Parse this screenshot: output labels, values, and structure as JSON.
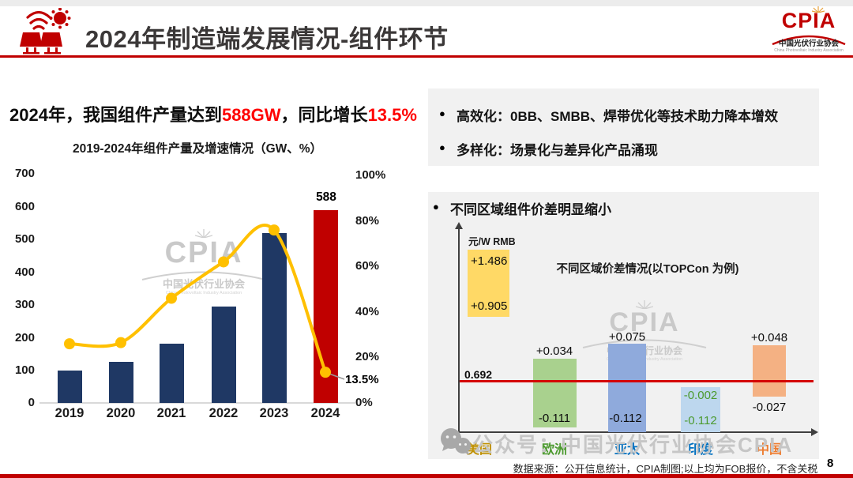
{
  "header": {
    "title": "2024年制造端发展情况-组件环节",
    "logo": {
      "acronym": "CPIA",
      "name_cn": "中国光伏行业协会",
      "name_en": "China Photovoltaic Industry Association"
    }
  },
  "headline": {
    "part1": "2024年，我国组件产量达到",
    "highlight1": "588GW",
    "part2": "，同比增长",
    "highlight2": "13.5%"
  },
  "bullets": [
    "高效化：0BB、SMBB、焊带优化等技术助力降本增效",
    "多样化：场景化与差异化产品涌现"
  ],
  "section_title": "不同区域组件价差明显缩小",
  "watermark": {
    "acronym": "CPIA",
    "name_cn": "中国光伏行业协会",
    "name_en": "China Photovoltaic Industry Association"
  },
  "bottom_watermark": "公众号：中国光伏行业协会CPIA",
  "footer": {
    "source": "数据来源：公开信息统计，CPIA制图;以上均为FOB报价，不含关税",
    "page": "8"
  },
  "chart_data": [
    {
      "type": "bar",
      "subtype": "bar-line-combo",
      "title": "2019-2024年组件产量及增速情况（GW、%）",
      "categories": [
        "2019",
        "2020",
        "2021",
        "2022",
        "2023",
        "2024"
      ],
      "series": [
        {
          "name": "组件产量(GW)",
          "type": "bar",
          "values": [
            98,
            125,
            182,
            295,
            518,
            588
          ]
        },
        {
          "name": "同比增速(%)",
          "type": "line",
          "values": [
            26,
            26.5,
            46,
            62,
            76,
            13.5
          ]
        }
      ],
      "left_axis": {
        "min": 0,
        "max": 700,
        "ticks": [
          "700",
          "600",
          "500",
          "400",
          "300",
          "200",
          "100",
          "0"
        ]
      },
      "right_axis": {
        "min": "0%",
        "max": "100%",
        "ticks": [
          "100%",
          "80%",
          "60%",
          "40%",
          "20%",
          "0%"
        ]
      },
      "colors": {
        "bar": "#1f3864",
        "bar_2024": "#c00000",
        "line": "#ffc000"
      },
      "labels": {
        "bar_2024": "588",
        "line_2024": "13.5%"
      }
    },
    {
      "type": "bar",
      "subtype": "floating-range-bars",
      "title": "不同区域价差情况(以TOPCon 为例)",
      "axis_label": "元/W  RMB",
      "baseline": {
        "value": "0.692",
        "color": "#d40000"
      },
      "categories": [
        "美国",
        "欧洲",
        "亚太",
        "印度",
        "中国"
      ],
      "bars": [
        {
          "region": "美国",
          "high": "+1.486",
          "low": "+0.905",
          "color": "#ffd966",
          "label_color": "#bf9000"
        },
        {
          "region": "欧洲",
          "high": "+0.034",
          "low": "-0.111",
          "color": "#a9d18e",
          "label_color": "#4c9a2f"
        },
        {
          "region": "亚太",
          "high": "+0.075",
          "low": "-0.112",
          "color": "#8faadc",
          "label_color": "#0070c0"
        },
        {
          "region": "印度",
          "high": "-0.002",
          "low": "-0.112",
          "color": "#bdd7ee",
          "label_color": "#0070c0"
        },
        {
          "region": "中国",
          "high": "+0.048",
          "low": "-0.027",
          "color": "#f4b183",
          "label_color": "#ed7d31"
        }
      ]
    }
  ]
}
